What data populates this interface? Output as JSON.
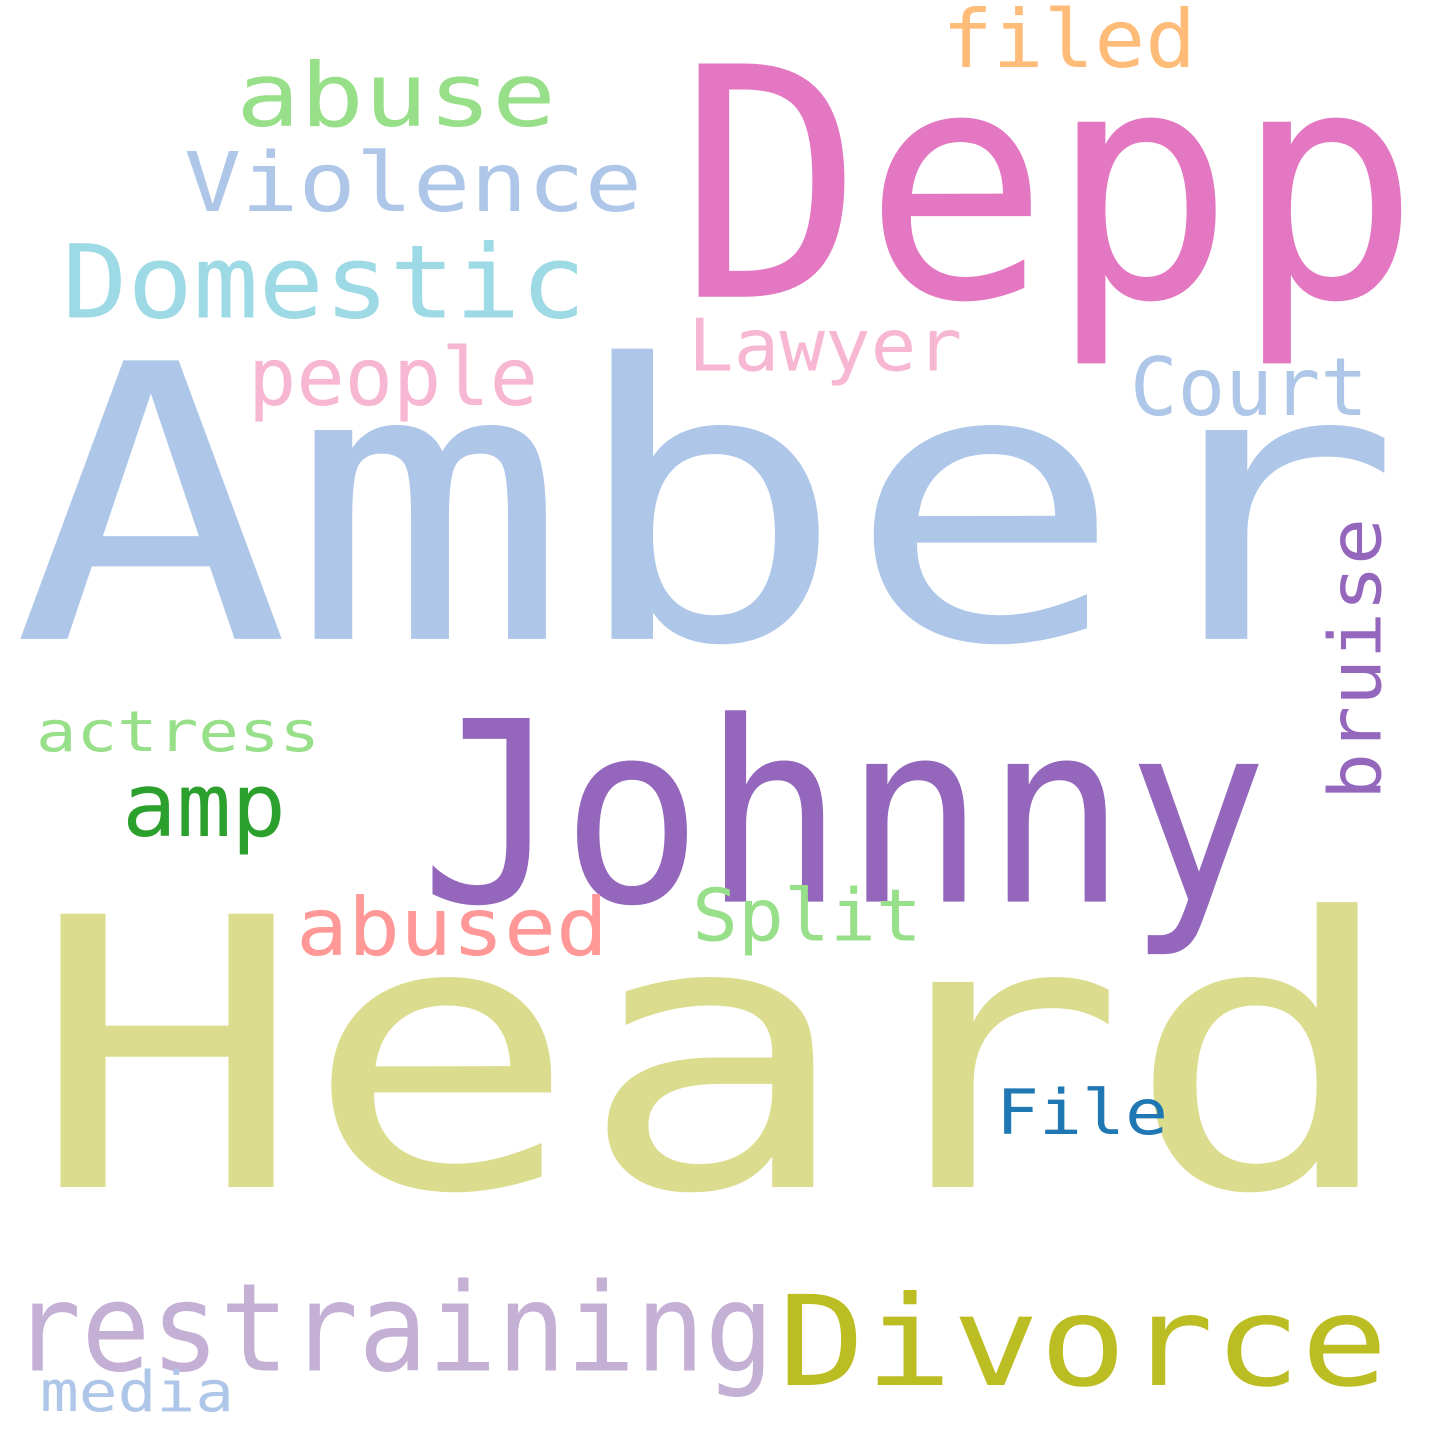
{
  "words": [
    {
      "text": "Heard",
      "color": "#dbdc8d"
    },
    {
      "text": "Amber",
      "color": "#aec7e8"
    },
    {
      "text": "Depp",
      "color": "#e377c2"
    },
    {
      "text": "Johnny",
      "color": "#9467bd"
    },
    {
      "text": "Divorce",
      "color": "#bcbd22"
    },
    {
      "text": "restraining",
      "color": "#c5b0d5"
    },
    {
      "text": "Domestic",
      "color": "#9edae5"
    },
    {
      "text": "Violence",
      "color": "#aec7e8"
    },
    {
      "text": "abuse",
      "color": "#98df8a"
    },
    {
      "text": "abused",
      "color": "#ff9896"
    },
    {
      "text": "Split",
      "color": "#98df8a"
    },
    {
      "text": "Court",
      "color": "#aec7e8"
    },
    {
      "text": "Lawyer",
      "color": "#f7b6d2"
    },
    {
      "text": "people",
      "color": "#f7b6d2"
    },
    {
      "text": "filed",
      "color": "#ffbb78"
    },
    {
      "text": "bruise",
      "color": "#9467bd"
    },
    {
      "text": "actress",
      "color": "#98df8a"
    },
    {
      "text": "amp",
      "color": "#2ca02c"
    },
    {
      "text": "File",
      "color": "#1f77b4"
    },
    {
      "text": "media",
      "color": "#aec7e8"
    }
  ]
}
